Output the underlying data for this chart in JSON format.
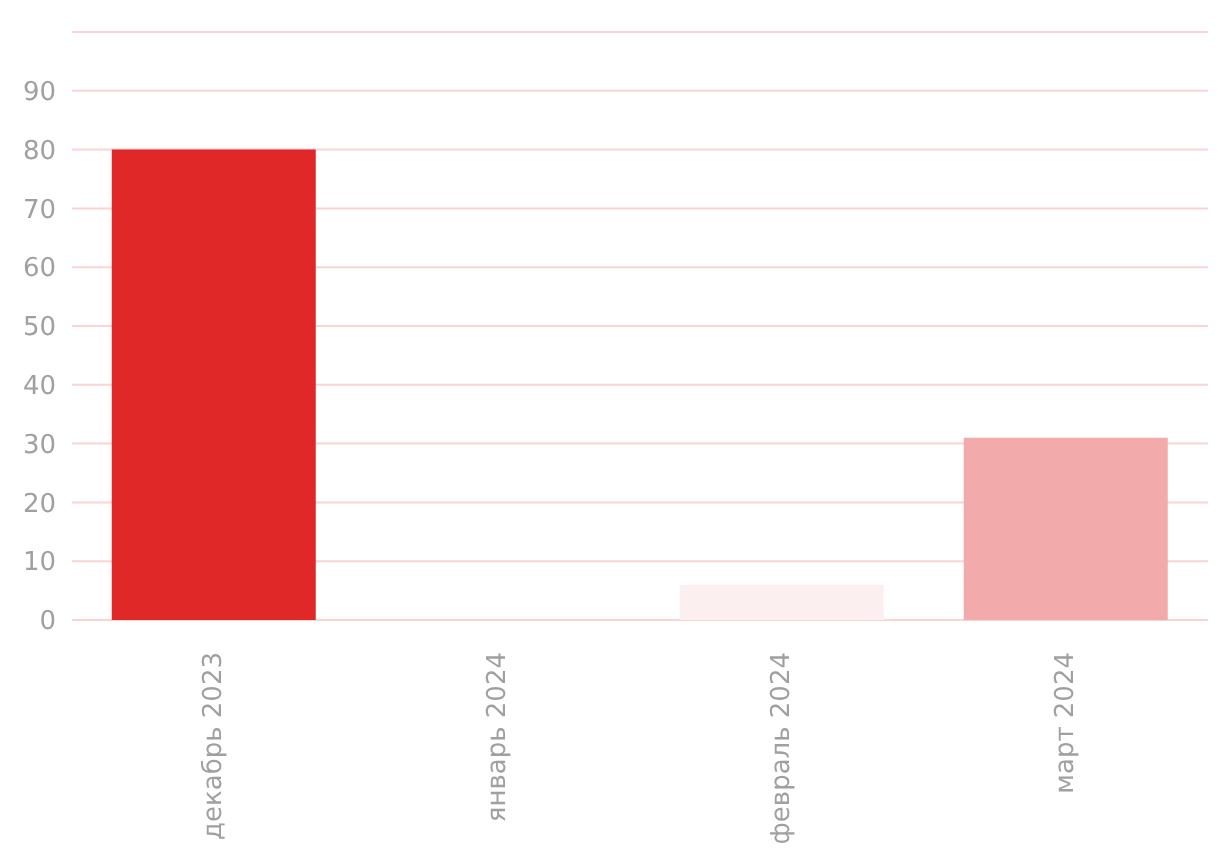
{
  "chart_data": {
    "type": "bar",
    "categories": [
      "декабрь 2023",
      "январь 2024",
      "февраль 2024",
      "март 2024"
    ],
    "values": [
      80,
      0,
      6,
      31
    ],
    "colors": [
      "#e02828",
      "#e02828",
      "#fbefef",
      "#f3aaaa"
    ],
    "ylim": [
      0,
      100
    ],
    "yticks": [
      0,
      10,
      20,
      30,
      40,
      50,
      60,
      70,
      80,
      90
    ],
    "grid": "y"
  }
}
